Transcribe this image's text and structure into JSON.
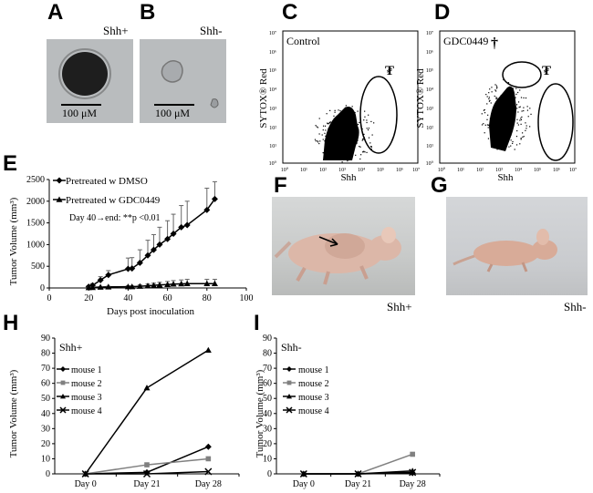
{
  "panels": {
    "A": "A",
    "B": "B",
    "C": "C",
    "D": "D",
    "E": "E",
    "F": "F",
    "G": "G",
    "H": "H",
    "I": "I"
  },
  "micrographs": {
    "A": {
      "label": "Shh+",
      "scale": "100 μM"
    },
    "B": {
      "label": "Shh-",
      "scale": "100 μM"
    }
  },
  "flow": {
    "C": {
      "label": "Control",
      "ylabel": "SYTOX® Red",
      "xlabel": "Shh",
      "ticks": [
        "10⁰",
        "10¹",
        "10²",
        "10³",
        "10⁴",
        "10⁵",
        "10⁶",
        "10⁷"
      ],
      "marker": "₮"
    },
    "D": {
      "label": "GDC0449",
      "ylabel": "SYTOX® Red",
      "xlabel": "Shh",
      "ticks": [
        "10⁰",
        "10¹",
        "10²",
        "10³",
        "10⁴",
        "10⁵",
        "10⁶",
        "10⁷"
      ],
      "marker": "₮",
      "dagger": "†"
    }
  },
  "photos": {
    "F": {
      "caption": "Shh+"
    },
    "G": {
      "caption": "Shh-"
    }
  },
  "chart_data": [
    {
      "id": "E",
      "type": "line",
      "xlabel": "Days post inoculation",
      "ylabel": "Tumor Volume (mm³)",
      "xlim": [
        0,
        100
      ],
      "ylim": [
        0,
        2500
      ],
      "xticks": [
        0,
        20,
        40,
        60,
        80,
        100
      ],
      "yticks": [
        0,
        500,
        1000,
        1500,
        2000,
        2500
      ],
      "annotation": "Day 40→end: **p <0.01",
      "series": [
        {
          "name": "Pretreated w DMSO",
          "marker": "diamond",
          "x": [
            20,
            22,
            26,
            30,
            40,
            42,
            46,
            50,
            53,
            56,
            60,
            63,
            67,
            70,
            80,
            84
          ],
          "y": [
            30,
            60,
            180,
            300,
            440,
            450,
            580,
            750,
            880,
            1000,
            1130,
            1250,
            1400,
            1450,
            1800,
            2050
          ],
          "err": [
            20,
            40,
            80,
            100,
            250,
            250,
            300,
            350,
            350,
            400,
            420,
            450,
            500,
            550,
            500,
            400
          ]
        },
        {
          "name": "Pretreated w GDC0449",
          "marker": "triangle",
          "x": [
            20,
            22,
            26,
            30,
            40,
            42,
            46,
            50,
            53,
            56,
            60,
            63,
            67,
            70,
            80,
            84
          ],
          "y": [
            10,
            12,
            20,
            25,
            30,
            30,
            40,
            50,
            60,
            70,
            80,
            90,
            95,
            100,
            100,
            100
          ],
          "err": [
            10,
            10,
            15,
            15,
            20,
            20,
            30,
            40,
            50,
            60,
            70,
            80,
            90,
            100,
            100,
            100
          ]
        }
      ]
    },
    {
      "id": "H",
      "type": "line",
      "title": "Shh+",
      "ylabel": "Tumor Volume (mm³)",
      "categories": [
        "Day 0",
        "Day 21",
        "Day 28"
      ],
      "ylim": [
        0,
        90
      ],
      "yticks": [
        0,
        10,
        20,
        30,
        40,
        50,
        60,
        70,
        80,
        90
      ],
      "series": [
        {
          "name": "mouse 1",
          "marker": "diamond",
          "color": "#000000",
          "values": [
            0,
            1,
            18
          ]
        },
        {
          "name": "mouse 2",
          "marker": "square",
          "color": "#808080",
          "values": [
            0,
            6,
            10
          ]
        },
        {
          "name": "mouse 3",
          "marker": "triangle",
          "color": "#000000",
          "values": [
            0,
            57,
            82
          ]
        },
        {
          "name": "mouse 4",
          "marker": "x",
          "color": "#000000",
          "values": [
            0,
            0,
            1.5
          ]
        }
      ]
    },
    {
      "id": "I",
      "type": "line",
      "title": "Shh-",
      "ylabel": "Tumor Volume (mm³)",
      "categories": [
        "Day 0",
        "Day 21",
        "Day 28"
      ],
      "ylim": [
        0,
        90
      ],
      "yticks": [
        0,
        10,
        20,
        30,
        40,
        50,
        60,
        70,
        80,
        90
      ],
      "series": [
        {
          "name": "mouse 1",
          "marker": "diamond",
          "color": "#000000",
          "values": [
            0,
            0,
            0.5
          ]
        },
        {
          "name": "mouse 2",
          "marker": "square",
          "color": "#808080",
          "values": [
            0,
            0,
            13
          ]
        },
        {
          "name": "mouse 3",
          "marker": "triangle",
          "color": "#000000",
          "values": [
            0,
            0,
            2
          ]
        },
        {
          "name": "mouse 4",
          "marker": "x",
          "color": "#000000",
          "values": [
            0,
            0,
            1
          ]
        }
      ]
    }
  ]
}
